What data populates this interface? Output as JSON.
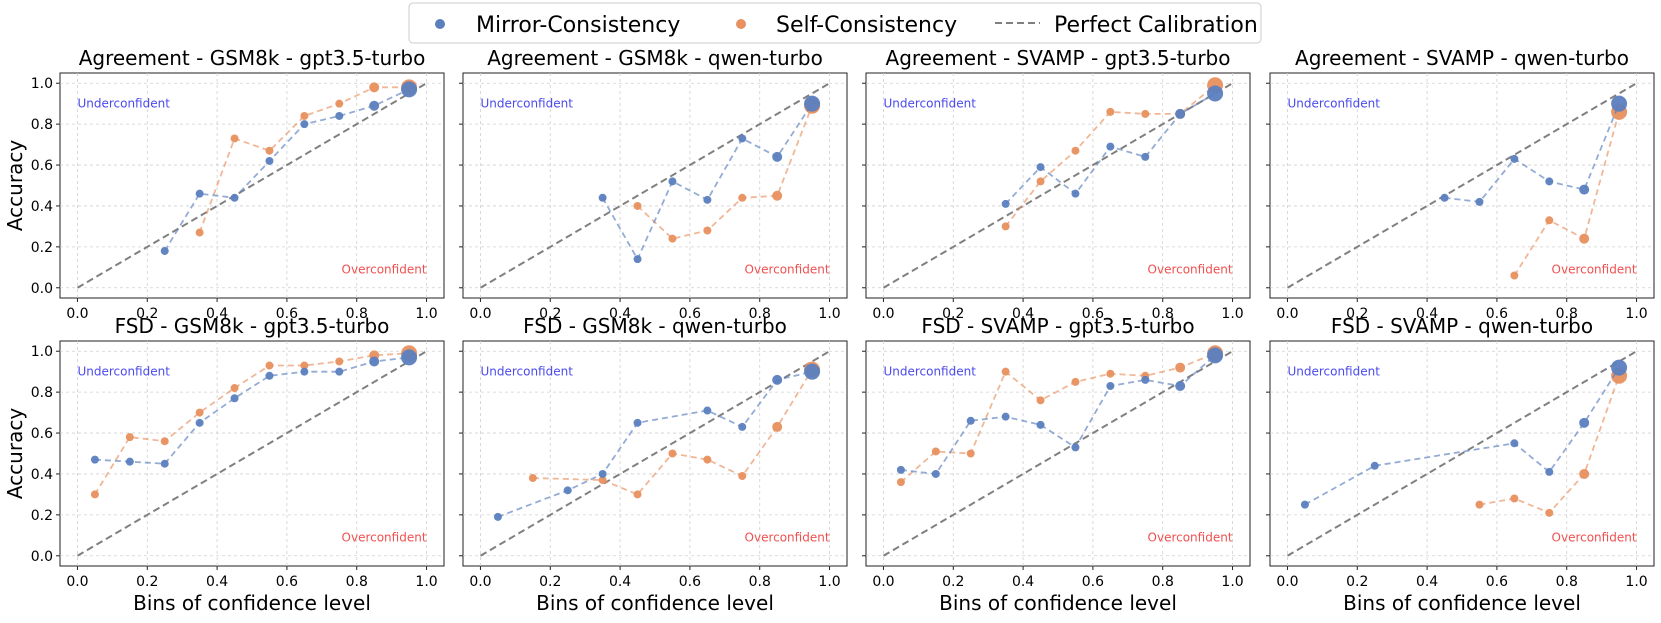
{
  "legend": {
    "items": [
      {
        "label": "Mirror-Consistency",
        "color": "#5b7fbf",
        "marker": "dot"
      },
      {
        "label": "Self-Consistency",
        "color": "#e8905f",
        "marker": "dot"
      },
      {
        "label": "Perfect Calibration",
        "color": "#808080",
        "marker": "dashed-line"
      }
    ]
  },
  "colors": {
    "mirror": "#5b7fbf",
    "self": "#e8905f",
    "perfect": "#808080",
    "under": "#4a4aee",
    "over": "#f05050"
  },
  "chart_data": [
    {
      "type": "line",
      "title": "Agreement - GSM8k - gpt3.5-turbo",
      "ylabel": "Accuracy",
      "xlabel": "",
      "xlim": [
        0,
        1
      ],
      "ylim": [
        0,
        1
      ],
      "xticks": [
        "0.0",
        "0.2",
        "0.4",
        "0.6",
        "0.8",
        "1.0"
      ],
      "yticks": [
        "0.0",
        "0.2",
        "0.4",
        "0.6",
        "0.8",
        "1.0"
      ],
      "annotations": {
        "under": "Underconfident",
        "over": "Overconfident"
      },
      "series": [
        {
          "name": "Mirror-Consistency",
          "x": [
            0.25,
            0.35,
            0.45,
            0.55,
            0.65,
            0.75,
            0.85,
            0.95
          ],
          "y": [
            0.18,
            0.46,
            0.44,
            0.62,
            0.8,
            0.84,
            0.89,
            0.97
          ]
        },
        {
          "name": "Self-Consistency",
          "x": [
            0.35,
            0.45,
            0.55,
            0.65,
            0.75,
            0.85,
            0.95
          ],
          "y": [
            0.27,
            0.73,
            0.67,
            0.84,
            0.9,
            0.98,
            0.98
          ]
        }
      ]
    },
    {
      "type": "line",
      "title": "Agreement - GSM8k - qwen-turbo",
      "ylabel": "",
      "xlabel": "",
      "xlim": [
        0,
        1
      ],
      "ylim": [
        0,
        1
      ],
      "xticks": [
        "0.0",
        "0.2",
        "0.4",
        "0.6",
        "0.8",
        "1.0"
      ],
      "yticks": [
        "0.0",
        "0.2",
        "0.4",
        "0.6",
        "0.8",
        "1.0"
      ],
      "annotations": {
        "under": "Underconfident",
        "over": "Overconfident"
      },
      "series": [
        {
          "name": "Mirror-Consistency",
          "x": [
            0.35,
            0.45,
            0.55,
            0.65,
            0.75,
            0.85,
            0.95
          ],
          "y": [
            0.44,
            0.14,
            0.52,
            0.43,
            0.73,
            0.64,
            0.9
          ]
        },
        {
          "name": "Self-Consistency",
          "x": [
            0.45,
            0.55,
            0.65,
            0.75,
            0.85,
            0.95
          ],
          "y": [
            0.4,
            0.24,
            0.28,
            0.44,
            0.45,
            0.89
          ]
        }
      ]
    },
    {
      "type": "line",
      "title": "Agreement - SVAMP - gpt3.5-turbo",
      "ylabel": "",
      "xlabel": "",
      "xlim": [
        0,
        1
      ],
      "ylim": [
        0,
        1
      ],
      "xticks": [
        "0.0",
        "0.2",
        "0.4",
        "0.6",
        "0.8",
        "1.0"
      ],
      "yticks": [
        "0.0",
        "0.2",
        "0.4",
        "0.6",
        "0.8",
        "1.0"
      ],
      "annotations": {
        "under": "Underconfident",
        "over": "Overconfident"
      },
      "series": [
        {
          "name": "Mirror-Consistency",
          "x": [
            0.35,
            0.45,
            0.55,
            0.65,
            0.75,
            0.85,
            0.95
          ],
          "y": [
            0.41,
            0.59,
            0.46,
            0.69,
            0.64,
            0.85,
            0.95
          ]
        },
        {
          "name": "Self-Consistency",
          "x": [
            0.35,
            0.45,
            0.55,
            0.65,
            0.75,
            0.85,
            0.95
          ],
          "y": [
            0.3,
            0.52,
            0.67,
            0.86,
            0.85,
            0.85,
            0.99
          ]
        }
      ]
    },
    {
      "type": "line",
      "title": "Agreement - SVAMP - qwen-turbo",
      "ylabel": "",
      "xlabel": "",
      "xlim": [
        0,
        1
      ],
      "ylim": [
        0,
        1
      ],
      "xticks": [
        "0.0",
        "0.2",
        "0.4",
        "0.6",
        "0.8",
        "1.0"
      ],
      "yticks": [
        "0.0",
        "0.2",
        "0.4",
        "0.6",
        "0.8",
        "1.0"
      ],
      "annotations": {
        "under": "Underconfident",
        "over": "Overconfident"
      },
      "series": [
        {
          "name": "Mirror-Consistency",
          "x": [
            0.45,
            0.55,
            0.65,
            0.75,
            0.85,
            0.95
          ],
          "y": [
            0.44,
            0.42,
            0.63,
            0.52,
            0.48,
            0.9
          ]
        },
        {
          "name": "Self-Consistency",
          "x": [
            0.65,
            0.75,
            0.85,
            0.95
          ],
          "y": [
            0.06,
            0.33,
            0.24,
            0.86
          ]
        }
      ]
    },
    {
      "type": "line",
      "title": "FSD - GSM8k - gpt3.5-turbo",
      "ylabel": "Accuracy",
      "xlabel": "Bins of confidence level",
      "xlim": [
        0,
        1
      ],
      "ylim": [
        0,
        1
      ],
      "xticks": [
        "0.0",
        "0.2",
        "0.4",
        "0.6",
        "0.8",
        "1.0"
      ],
      "yticks": [
        "0.0",
        "0.2",
        "0.4",
        "0.6",
        "0.8",
        "1.0"
      ],
      "annotations": {
        "under": "Underconfident",
        "over": "Overconfident"
      },
      "series": [
        {
          "name": "Mirror-Consistency",
          "x": [
            0.05,
            0.15,
            0.25,
            0.35,
            0.45,
            0.55,
            0.65,
            0.75,
            0.85,
            0.95
          ],
          "y": [
            0.47,
            0.46,
            0.45,
            0.65,
            0.77,
            0.88,
            0.9,
            0.9,
            0.95,
            0.97
          ]
        },
        {
          "name": "Self-Consistency",
          "x": [
            0.05,
            0.15,
            0.25,
            0.35,
            0.45,
            0.55,
            0.65,
            0.75,
            0.85,
            0.95
          ],
          "y": [
            0.3,
            0.58,
            0.56,
            0.7,
            0.82,
            0.93,
            0.93,
            0.95,
            0.98,
            0.99
          ]
        }
      ]
    },
    {
      "type": "line",
      "title": "FSD - GSM8k - qwen-turbo",
      "ylabel": "",
      "xlabel": "Bins of confidence level",
      "xlim": [
        0,
        1
      ],
      "ylim": [
        0,
        1
      ],
      "xticks": [
        "0.0",
        "0.2",
        "0.4",
        "0.6",
        "0.8",
        "1.0"
      ],
      "yticks": [
        "0.0",
        "0.2",
        "0.4",
        "0.6",
        "0.8",
        "1.0"
      ],
      "annotations": {
        "under": "Underconfident",
        "over": "Overconfident"
      },
      "series": [
        {
          "name": "Mirror-Consistency",
          "x": [
            0.05,
            0.25,
            0.35,
            0.45,
            0.65,
            0.75,
            0.85,
            0.95
          ],
          "y": [
            0.19,
            0.32,
            0.4,
            0.65,
            0.71,
            0.63,
            0.86,
            0.9
          ]
        },
        {
          "name": "Self-Consistency",
          "x": [
            0.15,
            0.35,
            0.45,
            0.55,
            0.65,
            0.75,
            0.85,
            0.95
          ],
          "y": [
            0.38,
            0.37,
            0.3,
            0.5,
            0.47,
            0.39,
            0.63,
            0.91
          ]
        }
      ]
    },
    {
      "type": "line",
      "title": "FSD - SVAMP - gpt3.5-turbo",
      "ylabel": "",
      "xlabel": "Bins of confidence level",
      "xlim": [
        0,
        1
      ],
      "ylim": [
        0,
        1
      ],
      "xticks": [
        "0.0",
        "0.2",
        "0.4",
        "0.6",
        "0.8",
        "1.0"
      ],
      "yticks": [
        "0.0",
        "0.2",
        "0.4",
        "0.6",
        "0.8",
        "1.0"
      ],
      "annotations": {
        "under": "Underconfident",
        "over": "Overconfident"
      },
      "series": [
        {
          "name": "Mirror-Consistency",
          "x": [
            0.05,
            0.15,
            0.25,
            0.35,
            0.45,
            0.55,
            0.65,
            0.75,
            0.85,
            0.95
          ],
          "y": [
            0.42,
            0.4,
            0.66,
            0.68,
            0.64,
            0.53,
            0.83,
            0.86,
            0.83,
            0.98
          ]
        },
        {
          "name": "Self-Consistency",
          "x": [
            0.05,
            0.15,
            0.25,
            0.35,
            0.45,
            0.55,
            0.65,
            0.75,
            0.85,
            0.95
          ],
          "y": [
            0.36,
            0.51,
            0.5,
            0.9,
            0.76,
            0.85,
            0.89,
            0.88,
            0.92,
            0.99
          ]
        }
      ]
    },
    {
      "type": "line",
      "title": "FSD - SVAMP - qwen-turbo",
      "ylabel": "",
      "xlabel": "Bins of confidence level",
      "xlim": [
        0,
        1
      ],
      "ylim": [
        0,
        1
      ],
      "xticks": [
        "0.0",
        "0.2",
        "0.4",
        "0.6",
        "0.8",
        "1.0"
      ],
      "yticks": [
        "0.0",
        "0.2",
        "0.4",
        "0.6",
        "0.8",
        "1.0"
      ],
      "annotations": {
        "under": "Underconfident",
        "over": "Overconfident"
      },
      "series": [
        {
          "name": "Mirror-Consistency",
          "x": [
            0.05,
            0.25,
            0.65,
            0.75,
            0.85,
            0.95
          ],
          "y": [
            0.25,
            0.44,
            0.55,
            0.41,
            0.65,
            0.92
          ]
        },
        {
          "name": "Self-Consistency",
          "x": [
            0.55,
            0.65,
            0.75,
            0.85,
            0.95
          ],
          "y": [
            0.25,
            0.28,
            0.21,
            0.4,
            0.88
          ]
        }
      ]
    }
  ]
}
